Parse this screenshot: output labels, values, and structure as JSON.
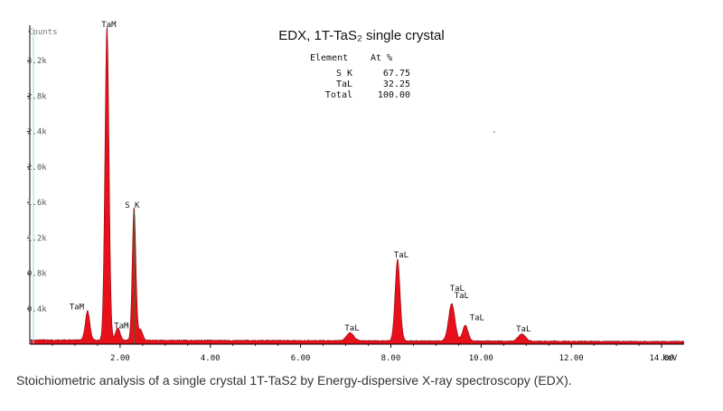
{
  "chart_data": {
    "type": "area",
    "title": "EDX, 1T-TaS₂ single crystal",
    "ylabel": "Counts",
    "xlabel": "keV",
    "xlim": [
      0,
      14.5
    ],
    "ylim": [
      0,
      3.6
    ],
    "x_ticks": [
      "2.00",
      "4.00",
      "6.00",
      "8.00",
      "10.00",
      "12.00",
      "14.00"
    ],
    "x_tick_values": [
      2,
      4,
      6,
      8,
      10,
      12,
      14
    ],
    "y_ticks": [
      "0.4k",
      "0.8k",
      "1.2k",
      "1.6k",
      "2.0k",
      "2.4k",
      "2.8k",
      "3.2k"
    ],
    "y_tick_values": [
      0.4,
      0.8,
      1.2,
      1.6,
      2.0,
      2.4,
      2.8,
      3.2
    ],
    "y_tick_units": "thousand counts",
    "baseline": 0.035,
    "peaks": [
      {
        "label": "TaM",
        "energy": 1.28,
        "height": 0.33,
        "width": 0.05
      },
      {
        "label": "TaM",
        "energy": 1.71,
        "height": 3.55,
        "width": 0.045
      },
      {
        "label": "TaM",
        "energy": 1.95,
        "height": 0.14,
        "width": 0.05
      },
      {
        "label": "S K",
        "energy": 2.31,
        "height": 1.5,
        "width": 0.04
      },
      {
        "label": "",
        "energy": 2.45,
        "height": 0.12,
        "width": 0.05
      },
      {
        "label": "TaL",
        "energy": 7.1,
        "height": 0.09,
        "width": 0.08
      },
      {
        "label": "TaL",
        "energy": 8.15,
        "height": 0.92,
        "width": 0.055
      },
      {
        "label": "TaL",
        "energy": 9.35,
        "height": 0.42,
        "width": 0.07
      },
      {
        "label": "TaL",
        "energy": 9.65,
        "height": 0.18,
        "width": 0.06
      },
      {
        "label": "TaL",
        "energy": 10.9,
        "height": 0.08,
        "width": 0.08
      }
    ],
    "annotations": [
      {
        "text": "TaM",
        "x": 1.71,
        "y": 3.55
      },
      {
        "text": "S K",
        "x": 2.31,
        "y": 1.5
      },
      {
        "text": "TaM",
        "x": 1.28,
        "y": 0.33
      },
      {
        "text": "TaM",
        "x": 1.95,
        "y": 0.14
      },
      {
        "text": "TaL",
        "x": 7.1,
        "y": 0.09
      },
      {
        "text": "TaL",
        "x": 8.15,
        "y": 0.92
      },
      {
        "text": "TaL",
        "x": 9.35,
        "y": 0.56
      },
      {
        "text": "TaL",
        "x": 9.45,
        "y": 0.44
      },
      {
        "text": "TaL",
        "x": 9.75,
        "y": 0.23
      },
      {
        "text": "TaL",
        "x": 10.9,
        "y": 0.08
      }
    ],
    "composition_table": {
      "headers": [
        "Element",
        "At %"
      ],
      "rows": [
        {
          "element": "S K",
          "at": "67.75"
        },
        {
          "element": "TaL",
          "at": "32.25"
        },
        {
          "element": "Total",
          "at": "100.00"
        }
      ]
    },
    "colors": {
      "fill": "#e8101a",
      "outline": "#8a0a10",
      "axis": "#000000",
      "tick_label": "#555555",
      "y_marker_line": "#9fd7e0",
      "sk_marker": "#2e7a2e"
    },
    "grid": false,
    "legend": "none"
  },
  "caption": "Stoichiometric analysis of a single crystal 1T-TaS2 by Energy-dispersive X-ray spectroscopy (EDX)."
}
